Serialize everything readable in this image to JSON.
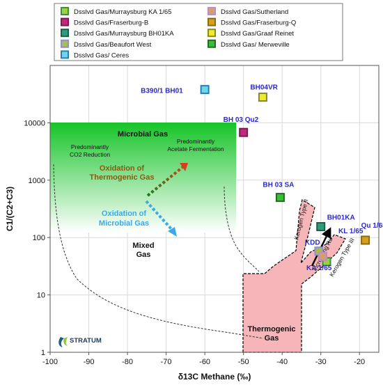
{
  "chart_data": {
    "type": "scatter",
    "xlabel": "δ13C Methane (‰)",
    "ylabel": "C1/(C2+C3)",
    "xlim": [
      -100,
      -15
    ],
    "ylim": [
      1,
      100000
    ],
    "y_scale": "log",
    "x_ticks": [
      "-100",
      "-90",
      "-80",
      "-70",
      "-60",
      "-50",
      "-40",
      "-30",
      "-20"
    ],
    "y_ticks": [
      "1",
      "10",
      "100",
      "1000",
      "10000"
    ],
    "grid": true,
    "legend_position": "top",
    "series": [
      {
        "name": "Dsslvd Gas/Murraysburg KA 1/65",
        "color": "#9bd040",
        "border": "#3f8f3f",
        "points": [
          {
            "x": -28.5,
            "y": 38,
            "label": "KA 1/65"
          }
        ]
      },
      {
        "name": "Dsslvd Gas/Fraserburg-B",
        "color": "#c4287c",
        "border": "#7a1a4e",
        "points": [
          {
            "x": -50,
            "y": 6800,
            "label": "BH 03 Qu2"
          }
        ]
      },
      {
        "name": "Dsslvd Gas/Murraysburg BH01KA",
        "color": "#2e9b7c",
        "border": "#1d5e4b",
        "points": [
          {
            "x": -30,
            "y": 155,
            "label": "BH01KA"
          }
        ]
      },
      {
        "name": "Dsslvd Gas/Beaufort West",
        "color": "#a9bb55",
        "border": "#8f8fd8",
        "points": [
          {
            "x": -30.5,
            "y": 58,
            "label": "KDD"
          }
        ]
      },
      {
        "name": "Dsslvd Gas/ Ceres",
        "color": "#6fd4ee",
        "border": "#2e7fa8",
        "points": [
          {
            "x": -60,
            "y": 38000,
            "label": "B390/1 BH01"
          }
        ]
      },
      {
        "name": "Dsslvd Gas/Sutherland",
        "color": "#d2a06e",
        "border": "#c48ac8",
        "points": [
          {
            "x": -29.5,
            "y": 47,
            "label": ""
          }
        ]
      },
      {
        "name": "Dsslvd Gas/Fraserburg-Q",
        "color": "#d4a020",
        "border": "#8a6a14",
        "points": [
          {
            "x": -18.5,
            "y": 90,
            "label": "Qu 1/65"
          }
        ]
      },
      {
        "name": "Dsslvd Gas/Graaf Reinet",
        "color": "#ecec2e",
        "border": "#8a8a14",
        "points": [
          {
            "x": -45,
            "y": 28000,
            "label": "BH04VR"
          }
        ]
      },
      {
        "name": "Dsslvd Gas/ Merweville",
        "color": "#3cbb3c",
        "border": "#1d6e1d",
        "points": [
          {
            "x": -40.5,
            "y": 500,
            "label": "BH 03 SA"
          }
        ]
      }
    ],
    "extra_labels": [
      "KL 1/65"
    ],
    "annotations": {
      "microbial_gas": "Microbial Gas",
      "co2_reduction": [
        "Predominantly",
        "CO2 Reduction"
      ],
      "acetate_fermentation": [
        "Predominantly",
        "Acetate Fermentation"
      ],
      "oxidation_thermogenic": [
        "Oxidation of",
        "Thermogenic Gas"
      ],
      "oxidation_microbial": [
        "Oxidation of",
        "Microbial Gas"
      ],
      "mixed_gas": [
        "Mixed",
        "Gas"
      ],
      "thermogenic_gas": [
        "Thermogenic",
        "Gas"
      ],
      "kerogen_type2": "Kerogen Type II",
      "kerogen_type3": "Kerogen Type III",
      "kerogen_type1": "Kerogen Type I",
      "increasing_ro": "Increasing Ro"
    },
    "logo_text": "STRATUM"
  },
  "colors": {
    "microbial_gradient_top": "#16c428",
    "microbial_gradient_bottom": "#ffffff",
    "thermogenic_fill": "#f6b6b9",
    "oxidation_thermogenic_arrow": [
      "#1e7c1e",
      "#d4401e"
    ],
    "oxidation_microbial_arrow": "#3aa8ea"
  }
}
